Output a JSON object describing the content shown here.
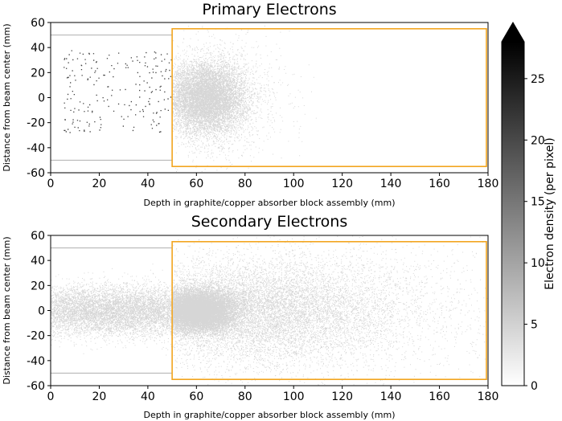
{
  "chart_data": [
    {
      "type": "heatmap",
      "title": "Primary Electrons",
      "xlabel": "Depth in graphite/copper absorber block assembly (mm)",
      "ylabel": "Distance from beam center (mm)",
      "xlim": [
        0,
        180
      ],
      "ylim": [
        -60,
        60
      ],
      "xticks": [
        0,
        20,
        40,
        60,
        80,
        100,
        120,
        140,
        160,
        180
      ],
      "yticks": [
        -60,
        -40,
        -20,
        0,
        20,
        40,
        60
      ],
      "graphite_boundary": {
        "x_max": 50,
        "y": [
          -50,
          50
        ],
        "color": "#b8b8b8"
      },
      "copper_block": {
        "x": [
          50,
          180
        ],
        "y": [
          -55,
          55
        ],
        "color": "#f2a51f"
      },
      "density_blobs": [
        {
          "x_center": 64,
          "y_center": 0,
          "x_sigma": 8,
          "y_sigma": 14,
          "count": 9000,
          "x_min": 50,
          "x_max": 180
        },
        {
          "x_center": 70,
          "y_center": 0,
          "x_sigma": 13,
          "y_sigma": 24,
          "count": 1400,
          "x_min": 50,
          "x_max": 180
        }
      ],
      "scatter_region": {
        "x_range": [
          5,
          50
        ],
        "y_range": [
          -28,
          38
        ],
        "count": 210
      }
    },
    {
      "type": "heatmap",
      "title": "Secondary Electrons",
      "xlabel": "Depth in graphite/copper absorber block assembly (mm)",
      "ylabel": "Distance from beam center (mm)",
      "xlim": [
        0,
        180
      ],
      "ylim": [
        -60,
        60
      ],
      "xticks": [
        0,
        20,
        40,
        60,
        80,
        100,
        120,
        140,
        160,
        180
      ],
      "yticks": [
        -60,
        -40,
        -20,
        0,
        20,
        40,
        60
      ],
      "graphite_boundary": {
        "x_max": 50,
        "y": [
          -50,
          50
        ],
        "color": "#b8b8b8"
      },
      "copper_block": {
        "x": [
          50,
          180
        ],
        "y": [
          -55,
          55
        ],
        "color": "#f2a51f"
      },
      "density_blobs": [
        {
          "x_center": 25,
          "y_center": 0,
          "x_sigma": 30,
          "y_sigma": 10,
          "count": 11000,
          "x_min": 0,
          "x_max": 50
        },
        {
          "x_center": 60,
          "y_center": 0,
          "x_sigma": 8,
          "y_sigma": 8,
          "count": 15000,
          "x_min": 50,
          "x_max": 180
        },
        {
          "x_center": 85,
          "y_center": 0,
          "x_sigma": 28,
          "y_sigma": 20,
          "count": 9000,
          "x_min": 50,
          "x_max": 180
        },
        {
          "x_center": 110,
          "y_center": 0,
          "x_sigma": 45,
          "y_sigma": 32,
          "count": 2500,
          "x_min": 50,
          "x_max": 180
        }
      ]
    }
  ],
  "colorbar": {
    "label": "Electron density (per pixel)",
    "min": 0,
    "max": 28,
    "ticks": [
      0,
      5,
      10,
      15,
      20,
      25
    ],
    "extend": "max",
    "colors": [
      "#ffffff",
      "#000000"
    ]
  }
}
